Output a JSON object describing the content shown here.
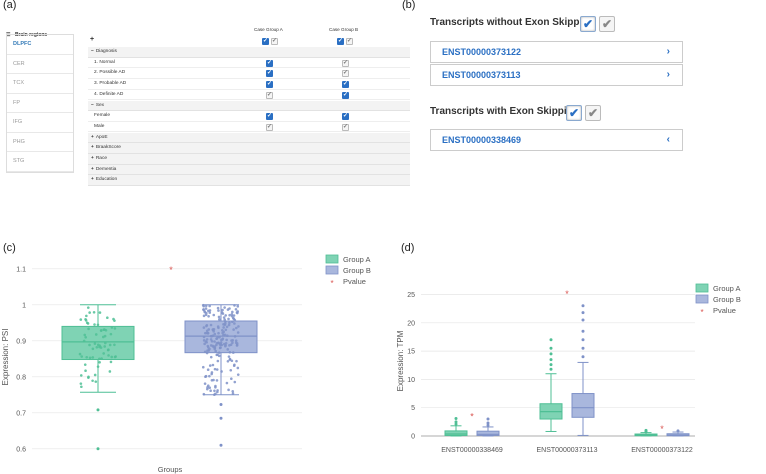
{
  "panels": {
    "a": "(a)",
    "b": "(b)",
    "c": "(c)",
    "d": "(d)"
  },
  "filter": {
    "sidebar_title": "Brain regions",
    "regions": [
      "DLPFC",
      "CER",
      "TCX",
      "FP",
      "IFG",
      "PHG",
      "STG"
    ],
    "active_region": "DLPFC",
    "header_plus": "+",
    "columns": [
      "Case Group A",
      "Case Group B"
    ],
    "rows": [
      {
        "label": "Diagnosis",
        "sign": "−",
        "kind": "group",
        "a": null,
        "b": null
      },
      {
        "label": "1. Normal",
        "kind": "child",
        "a": true,
        "b": false
      },
      {
        "label": "2. Possible AD",
        "kind": "child",
        "a": true,
        "b": false
      },
      {
        "label": "3. Probable AD",
        "kind": "child",
        "a": true,
        "b": true
      },
      {
        "label": "4. Definite AD",
        "kind": "child",
        "a": false,
        "b": true
      },
      {
        "label": "Sex",
        "sign": "−",
        "kind": "group",
        "a": null,
        "b": null
      },
      {
        "label": "Female",
        "kind": "child",
        "a": true,
        "b": true
      },
      {
        "label": "Male",
        "kind": "child",
        "a": false,
        "b": false
      },
      {
        "label": "ApoE",
        "sign": "+",
        "kind": "group",
        "a": null,
        "b": null
      },
      {
        "label": "BraakScore",
        "sign": "+",
        "kind": "group",
        "a": null,
        "b": null
      },
      {
        "label": "Race",
        "sign": "+",
        "kind": "group",
        "a": null,
        "b": null
      },
      {
        "label": "Dementia",
        "sign": "+",
        "kind": "group",
        "a": null,
        "b": null
      },
      {
        "label": "Education",
        "sign": "+",
        "kind": "group",
        "a": null,
        "b": null
      }
    ]
  },
  "transcripts": {
    "without_title": "Transcripts without Exon Skipping",
    "without_items": [
      "ENST00000373122",
      "ENST00000373113"
    ],
    "with_title": "Transcripts with Exon Skipping",
    "with_items": [
      "ENST00000338469"
    ],
    "chevron_right": "›",
    "chevron_left": "‹",
    "check": "✔"
  },
  "chart_data": [
    {
      "type": "box",
      "ylabel": "Expression: PSI",
      "xlabel": "Groups",
      "ylim": [
        0.58,
        1.13
      ],
      "yticks": [
        0.6,
        0.7,
        0.8,
        0.9,
        1,
        1.1
      ],
      "ytick_labels": [
        "0.6",
        "0.7",
        "0.8",
        "0.9",
        "1",
        "1.1"
      ],
      "grid": true,
      "legend": [
        "Group A",
        "Group B",
        "Pvalue"
      ],
      "legend_position": "top-right",
      "colors": {
        "a": "#7fd3b4",
        "a_edge": "#4fbf95",
        "b": "#a9b7dd",
        "b_edge": "#7f92c8",
        "pvalue": "#d9534f"
      },
      "series": [
        {
          "name": "Group A",
          "min": 0.757,
          "q1": 0.848,
          "median": 0.897,
          "q3": 0.94,
          "max": 1.0,
          "outliers": [
            0.708,
            0.6
          ]
        },
        {
          "name": "Group B",
          "min": 0.75,
          "q1": 0.867,
          "median": 0.913,
          "q3": 0.955,
          "max": 1.0,
          "outliers": [
            0.723,
            0.685,
            0.61
          ]
        }
      ],
      "pvalue_marker": 1.1
    },
    {
      "type": "box",
      "ylabel": "Expression: TPM",
      "categories": [
        "ENST00000338469",
        "ENST00000373113",
        "ENST00000373122"
      ],
      "ylim": [
        0,
        26.5
      ],
      "yticks": [
        0,
        5,
        10,
        15,
        20,
        25
      ],
      "ytick_labels": [
        "0",
        "5",
        "10",
        "15",
        "20",
        "25"
      ],
      "grid": true,
      "legend": [
        "Group A",
        "Group B",
        "Pvalue"
      ],
      "legend_position": "top-right",
      "series": [
        {
          "name": "Group A",
          "boxes": [
            {
              "min": 0,
              "q1": 0.1,
              "median": 0.35,
              "q3": 0.9,
              "max": 1.8,
              "outliers": [
                2.1,
                2.5,
                3.1
              ]
            },
            {
              "min": 0.8,
              "q1": 3.0,
              "median": 4.3,
              "q3": 5.7,
              "max": 11.0,
              "outliers": [
                11.8,
                12.6,
                13.5,
                14.5,
                15.5,
                17
              ]
            },
            {
              "min": 0,
              "q1": 0.05,
              "median": 0.15,
              "q3": 0.35,
              "max": 0.6,
              "outliers": [
                0.8,
                1.0
              ]
            }
          ]
        },
        {
          "name": "Group B",
          "boxes": [
            {
              "min": 0,
              "q1": 0.1,
              "median": 0.3,
              "q3": 0.85,
              "max": 1.6,
              "outliers": [
                1.9,
                2.3,
                3.0
              ]
            },
            {
              "min": 0.1,
              "q1": 3.3,
              "median": 5.0,
              "q3": 7.5,
              "max": 13.0,
              "outliers": [
                14,
                15.5,
                17,
                18.5,
                20.5,
                21.8,
                23
              ]
            },
            {
              "min": 0,
              "q1": 0.05,
              "median": 0.15,
              "q3": 0.4,
              "max": 0.7,
              "outliers": [
                0.9
              ]
            }
          ]
        }
      ],
      "pvalue_markers": [
        3.6,
        25.3,
        1.4
      ]
    }
  ]
}
